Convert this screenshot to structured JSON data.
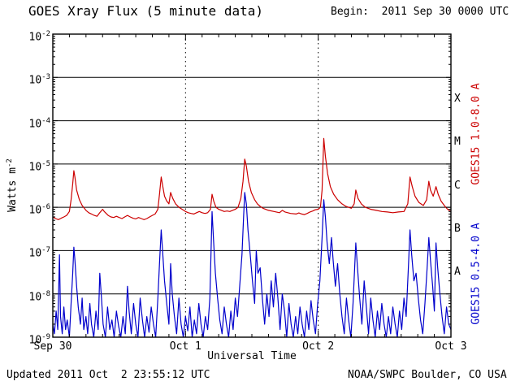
{
  "header": {
    "title": "GOES Xray Flux (5 minute data)",
    "begin": "Begin:  2011 Sep 30 0000 UTC"
  },
  "footer": {
    "updated": "Updated 2011 Oct  2 23:55:12 UTC",
    "credit": "NOAA/SWPC Boulder, CO USA"
  },
  "axes": {
    "y_title_base": "Watts m",
    "y_title_exp": "-2",
    "x_title": "Universal Time",
    "y_tick_base": "10",
    "y_tick_exponents": [
      -2,
      -3,
      -4,
      -5,
      -6,
      -7,
      -8,
      -9
    ],
    "x_ticks": [
      {
        "label": "Sep 30",
        "hour": 0
      },
      {
        "label": "Oct 1",
        "hour": 24
      },
      {
        "label": "Oct 2",
        "hour": 48
      },
      {
        "label": "Oct 3",
        "hour": 72
      }
    ],
    "day_boundaries_hours": [
      24,
      48
    ]
  },
  "flare_classes": [
    {
      "label": "X",
      "mid_exponent": -3.5
    },
    {
      "label": "M",
      "mid_exponent": -4.5
    },
    {
      "label": "C",
      "mid_exponent": -5.5
    },
    {
      "label": "B",
      "mid_exponent": -6.5
    },
    {
      "label": "A",
      "mid_exponent": -7.5
    }
  ],
  "series_labels": {
    "long": "GOES15 1.0-8.0 A",
    "short": "GOES15 0.5-4.0 A"
  },
  "colors": {
    "long": "#cc0000",
    "short": "#0000cc",
    "axis": "#000000",
    "background": "#ffffff"
  },
  "chart_data": {
    "type": "line",
    "title": "GOES Xray Flux (5 minute data)",
    "xlabel": "Universal Time",
    "ylabel": "Watts m^-2",
    "x_unit": "hours since 2011-09-30 00:00 UTC",
    "xlim": [
      0,
      72
    ],
    "ylim": [
      1e-09,
      0.01
    ],
    "yscale": "log",
    "grid": "horizontal decade lines, dotted vertical day boundaries",
    "series": [
      {
        "name": "GOES15 1.0-8.0 A",
        "color": "#cc0000",
        "x": [
          0,
          0.5,
          1,
          1.5,
          2,
          2.5,
          3,
          3.3,
          3.6,
          3.8,
          4,
          4.3,
          4.8,
          5.3,
          6,
          6.5,
          7,
          7.5,
          8,
          8.5,
          9,
          9.3,
          10,
          10.5,
          11,
          11.5,
          12,
          12.5,
          13,
          13.5,
          14,
          14.5,
          15,
          15.5,
          16,
          16.5,
          17,
          17.5,
          18,
          18.5,
          19,
          19.3,
          19.6,
          19.9,
          20.2,
          20.6,
          21,
          21.3,
          21.7,
          22.2,
          22.8,
          23.4,
          24,
          24.5,
          25,
          25.5,
          26,
          26.5,
          27,
          27.5,
          28,
          28.5,
          28.8,
          29.1,
          29.5,
          30,
          30.5,
          31,
          31.5,
          32,
          32.5,
          33,
          33.5,
          34,
          34.4,
          34.7,
          35,
          35.4,
          35.9,
          36.5,
          37,
          37.5,
          38,
          39,
          40,
          41,
          41.5,
          42,
          43,
          44,
          44.5,
          45,
          45.5,
          46,
          46.5,
          47,
          47.5,
          48,
          48.4,
          48.7,
          49,
          49.3,
          49.7,
          50.2,
          50.8,
          51.5,
          52.3,
          53,
          54,
          54.5,
          54.8,
          55.2,
          55.8,
          56.5,
          57.5,
          58.5,
          59.5,
          60.5,
          61.5,
          62.5,
          63.5,
          64.2,
          64.6,
          65,
          65.5,
          66.2,
          67,
          67.6,
          68,
          68.3,
          68.8,
          69.3,
          69.7,
          70.2,
          70.8,
          71.4,
          72
        ],
        "y": [
          6e-07,
          5.5e-07,
          5.2e-07,
          5.6e-07,
          6e-07,
          6.5e-07,
          8e-07,
          1.5e-06,
          3.5e-06,
          7e-06,
          5e-06,
          2.5e-06,
          1.5e-06,
          1.1e-06,
          8.5e-07,
          7.5e-07,
          7e-07,
          6.5e-07,
          6.2e-07,
          7.5e-07,
          9e-07,
          8e-07,
          6.5e-07,
          6e-07,
          5.8e-07,
          6.2e-07,
          5.8e-07,
          5.5e-07,
          6e-07,
          6.5e-07,
          6e-07,
          5.6e-07,
          5.4e-07,
          5.8e-07,
          5.5e-07,
          5.2e-07,
          5.5e-07,
          6e-07,
          6.5e-07,
          7e-07,
          9e-07,
          2e-06,
          5e-06,
          3e-06,
          1.8e-06,
          1.4e-06,
          1.2e-06,
          2.2e-06,
          1.6e-06,
          1.2e-06,
          1e-06,
          9e-07,
          8e-07,
          7.5e-07,
          7.2e-07,
          7e-07,
          7.5e-07,
          8e-07,
          7.5e-07,
          7.2e-07,
          7.5e-07,
          9e-07,
          2e-06,
          1.4e-06,
          1e-06,
          9e-07,
          8.5e-07,
          8e-07,
          8.2e-07,
          8e-07,
          8.5e-07,
          9e-07,
          1e-06,
          1.6e-06,
          4e-06,
          1.3e-05,
          9e-06,
          4e-06,
          2.2e-06,
          1.5e-06,
          1.2e-06,
          1.05e-06,
          9.5e-07,
          8.5e-07,
          8e-07,
          7.5e-07,
          8.5e-07,
          7.8e-07,
          7.2e-07,
          7e-07,
          7.4e-07,
          7e-07,
          6.8e-07,
          7.2e-07,
          7.8e-07,
          8.2e-07,
          8.8e-07,
          9e-07,
          1e-06,
          2.5e-06,
          3.9e-05,
          1.5e-05,
          6e-06,
          3e-06,
          2e-06,
          1.5e-06,
          1.2e-06,
          1.05e-06,
          9.5e-07,
          1.2e-06,
          2.5e-06,
          1.6e-06,
          1.2e-06,
          1e-06,
          9e-07,
          8.5e-07,
          8e-07,
          7.8e-07,
          7.5e-07,
          7.8e-07,
          8e-07,
          1.2e-06,
          5e-06,
          3e-06,
          1.8e-06,
          1.3e-06,
          1.1e-06,
          1.5e-06,
          4e-06,
          2.5e-06,
          1.8e-06,
          3e-06,
          2e-06,
          1.4e-06,
          1.1e-06,
          9e-07,
          8e-07
        ]
      },
      {
        "name": "GOES15 0.5-4.0 A",
        "color": "#0000cc",
        "x": [
          0,
          0.3,
          0.6,
          0.9,
          1.2,
          1.4,
          1.7,
          2,
          2.3,
          2.6,
          3,
          3.3,
          3.6,
          3.8,
          4,
          4.3,
          4.6,
          5,
          5.3,
          5.6,
          6,
          6.3,
          6.7,
          7,
          7.4,
          7.8,
          8.2,
          8.5,
          8.8,
          9.1,
          9.5,
          9.9,
          10.3,
          10.7,
          11.1,
          11.5,
          11.9,
          12.3,
          12.7,
          13.1,
          13.5,
          13.8,
          14.2,
          14.6,
          15,
          15.4,
          15.8,
          16.2,
          16.6,
          17,
          17.4,
          17.8,
          18.2,
          18.6,
          19,
          19.3,
          19.6,
          19.9,
          20.2,
          20.6,
          21,
          21.3,
          21.6,
          22,
          22.4,
          22.8,
          23.2,
          23.6,
          24,
          24.4,
          24.8,
          25.2,
          25.6,
          26,
          26.4,
          26.8,
          27.2,
          27.6,
          28,
          28.4,
          28.8,
          29.1,
          29.4,
          29.8,
          30.2,
          30.6,
          31,
          31.4,
          31.8,
          32.2,
          32.6,
          33,
          33.4,
          33.8,
          34.2,
          34.5,
          34.7,
          35,
          35.3,
          35.7,
          36.1,
          36.5,
          36.8,
          37.1,
          37.5,
          37.9,
          38.3,
          38.7,
          39.1,
          39.5,
          39.9,
          40.3,
          40.7,
          41.1,
          41.5,
          41.9,
          42.3,
          42.7,
          43.1,
          43.5,
          43.9,
          44.3,
          44.7,
          45.1,
          45.5,
          45.9,
          46.3,
          46.7,
          47.1,
          47.5,
          47.9,
          48.3,
          48.7,
          49,
          49.3,
          49.6,
          50,
          50.4,
          50.7,
          51.1,
          51.5,
          51.9,
          52.3,
          52.7,
          53.1,
          53.5,
          53.9,
          54.3,
          54.8,
          55.1,
          55.5,
          55.9,
          56.3,
          56.7,
          57.1,
          57.5,
          57.9,
          58.3,
          58.7,
          59.1,
          59.5,
          59.9,
          60.3,
          60.7,
          61.1,
          61.5,
          61.9,
          62.3,
          62.7,
          63.1,
          63.5,
          63.9,
          64.3,
          64.6,
          64.9,
          65.3,
          65.7,
          66.1,
          66.5,
          66.9,
          67.3,
          67.7,
          68,
          68.3,
          68.7,
          69,
          69.3,
          69.6,
          70,
          70.4,
          70.8,
          71.2,
          71.6,
          72
        ],
        "y": [
          2e-09,
          1.2e-09,
          4e-09,
          1.5e-09,
          8e-08,
          3e-09,
          1.2e-09,
          5e-09,
          1.5e-09,
          2.5e-09,
          1e-09,
          6e-09,
          3e-08,
          1.2e-07,
          6e-08,
          1.5e-08,
          5e-09,
          2e-09,
          8e-09,
          1.5e-09,
          3e-09,
          1.2e-09,
          6e-09,
          2e-09,
          1e-09,
          4e-09,
          1.5e-09,
          3e-08,
          8e-09,
          2e-09,
          1e-09,
          5e-09,
          1.5e-09,
          2.5e-09,
          1e-09,
          4e-09,
          1.8e-09,
          9e-10,
          3e-09,
          1.2e-09,
          1.5e-08,
          4e-09,
          1.2e-09,
          6e-09,
          2e-09,
          1e-09,
          8e-09,
          2.5e-09,
          1e-09,
          3e-09,
          1.3e-09,
          5e-09,
          2e-09,
          1e-09,
          8e-09,
          5e-08,
          3e-07,
          8e-08,
          2e-08,
          6e-09,
          2e-09,
          5e-08,
          1e-08,
          3e-09,
          1.2e-09,
          8e-09,
          2e-09,
          1e-09,
          3e-09,
          1.4e-09,
          5e-09,
          1e-09,
          2.5e-09,
          1.2e-09,
          6e-09,
          2e-09,
          1e-09,
          3e-09,
          1.5e-09,
          8e-09,
          8e-07,
          1.5e-07,
          3e-08,
          8e-09,
          2.5e-09,
          1.2e-09,
          5e-09,
          2e-09,
          1e-09,
          4e-09,
          1.5e-09,
          8e-09,
          3e-09,
          1.5e-08,
          8e-08,
          6e-07,
          2.2e-06,
          1.2e-06,
          3e-07,
          8e-08,
          2e-08,
          6e-09,
          1e-07,
          3e-08,
          4e-08,
          8e-09,
          2e-09,
          1e-08,
          3e-09,
          2e-08,
          5e-09,
          3e-08,
          8e-09,
          1.5e-09,
          1e-08,
          4e-09,
          1e-09,
          6e-09,
          2e-09,
          1e-09,
          3e-09,
          1.2e-09,
          5e-09,
          2e-09,
          9e-10,
          4e-09,
          1.5e-09,
          7e-09,
          2.5e-09,
          1.2e-09,
          6e-09,
          2e-08,
          2e-07,
          1.5e-06,
          6e-07,
          1.5e-07,
          5e-08,
          2e-07,
          6e-08,
          1.5e-08,
          5e-08,
          1e-08,
          3e-09,
          1.2e-09,
          8e-09,
          2.5e-09,
          1e-09,
          6e-09,
          1.5e-07,
          4e-08,
          8e-09,
          2e-09,
          2e-08,
          5e-09,
          1.2e-09,
          8e-09,
          2.5e-09,
          1e-09,
          4e-09,
          1.5e-09,
          6e-09,
          2e-09,
          1e-09,
          3e-09,
          1.2e-09,
          5e-09,
          2e-09,
          9e-10,
          4e-09,
          1.5e-09,
          8e-09,
          3e-09,
          4e-08,
          3e-07,
          8e-08,
          2e-08,
          3e-08,
          8e-09,
          2.5e-09,
          1.2e-09,
          6e-09,
          4e-08,
          2e-07,
          6e-08,
          1.5e-08,
          4e-09,
          1.5e-07,
          4e-08,
          1e-08,
          3e-09,
          1.2e-09,
          5e-09,
          2e-09,
          1.5e-09
        ]
      }
    ]
  }
}
